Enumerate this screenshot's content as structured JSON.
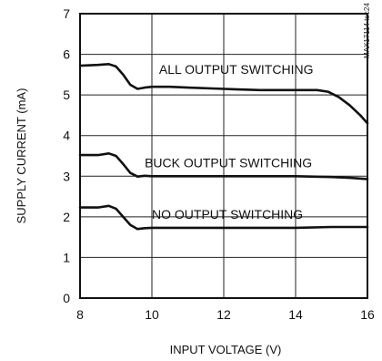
{
  "chart_data": {
    "type": "line",
    "title": "",
    "xlabel": "INPUT VOLTAGE (V)",
    "ylabel": "SUPPLY CURRENT (mA)",
    "xlim": [
      8,
      16
    ],
    "ylim": [
      0,
      7
    ],
    "xticks": [
      8,
      10,
      12,
      14,
      16
    ],
    "yticks": [
      0,
      1,
      2,
      3,
      4,
      5,
      6,
      7
    ],
    "grid": true,
    "legend": "none",
    "figure_tag": "MAX17114 toc24",
    "series": [
      {
        "name": "ALL OUTPUT SWITCHING",
        "x": [
          8.0,
          8.5,
          8.8,
          9.0,
          9.2,
          9.4,
          9.6,
          9.8,
          10.0,
          10.5,
          11.0,
          12.0,
          13.0,
          14.0,
          14.6,
          14.9,
          15.2,
          15.5,
          15.8,
          16.0
        ],
        "y": [
          5.72,
          5.74,
          5.76,
          5.7,
          5.5,
          5.25,
          5.15,
          5.18,
          5.2,
          5.2,
          5.18,
          5.15,
          5.12,
          5.12,
          5.12,
          5.08,
          4.95,
          4.75,
          4.5,
          4.3
        ]
      },
      {
        "name": "BUCK OUTPUT SWITCHING",
        "x": [
          8.0,
          8.5,
          8.8,
          9.0,
          9.2,
          9.4,
          9.6,
          9.8,
          10.0,
          11.0,
          12.0,
          13.0,
          14.0,
          15.0,
          15.5,
          16.0
        ],
        "y": [
          3.52,
          3.52,
          3.56,
          3.5,
          3.3,
          3.08,
          2.99,
          3.01,
          3.0,
          3.0,
          3.0,
          3.0,
          3.0,
          2.98,
          2.96,
          2.93
        ]
      },
      {
        "name": "NO OUTPUT SWITCHING",
        "x": [
          8.0,
          8.5,
          8.8,
          9.0,
          9.2,
          9.4,
          9.6,
          9.8,
          10.0,
          11.0,
          12.0,
          13.0,
          14.0,
          15.0,
          16.0
        ],
        "y": [
          2.23,
          2.23,
          2.27,
          2.2,
          2.0,
          1.8,
          1.7,
          1.72,
          1.73,
          1.73,
          1.73,
          1.73,
          1.73,
          1.75,
          1.75
        ]
      }
    ]
  }
}
